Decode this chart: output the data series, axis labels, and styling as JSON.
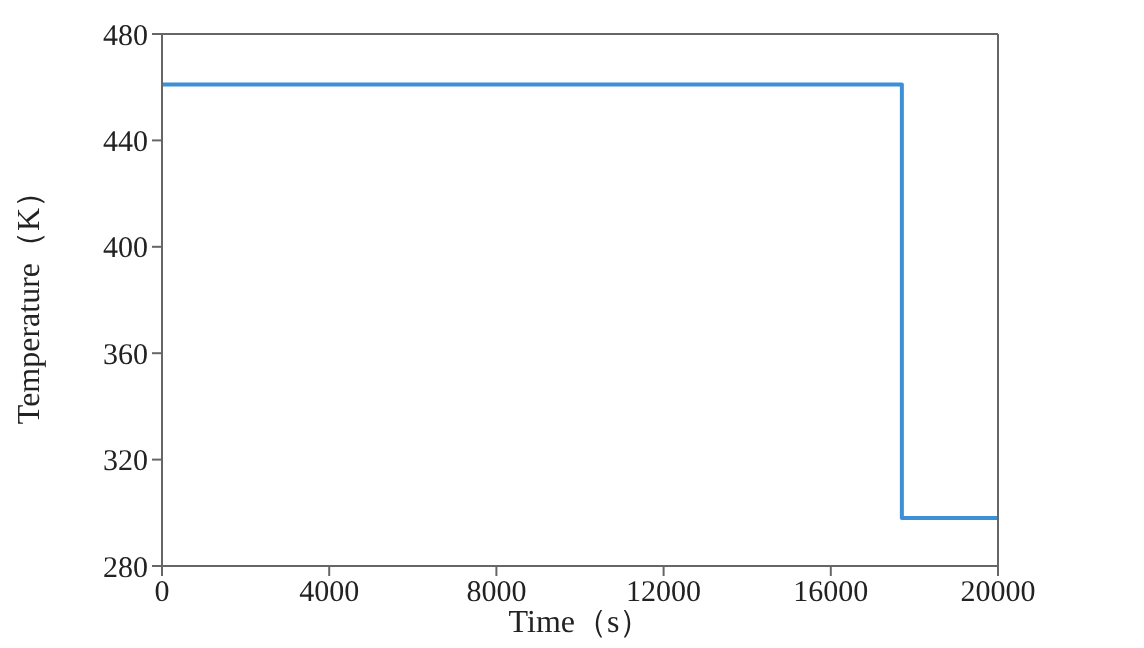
{
  "chart_data": {
    "type": "step",
    "xlabel": "Time（s）",
    "ylabel": "Temperature（K）",
    "x": [
      0,
      17700,
      20000
    ],
    "series": [
      {
        "color": "#3d8fd6",
        "values": [
          461,
          298,
          298
        ]
      }
    ],
    "xlim": [
      0,
      20000
    ],
    "xticks": [
      0,
      4000,
      8000,
      12000,
      16000,
      20000
    ],
    "ylim": [
      280,
      480
    ],
    "yticks": [
      280,
      320,
      360,
      400,
      440,
      480
    ],
    "marker": "none",
    "line_style": "solid"
  }
}
